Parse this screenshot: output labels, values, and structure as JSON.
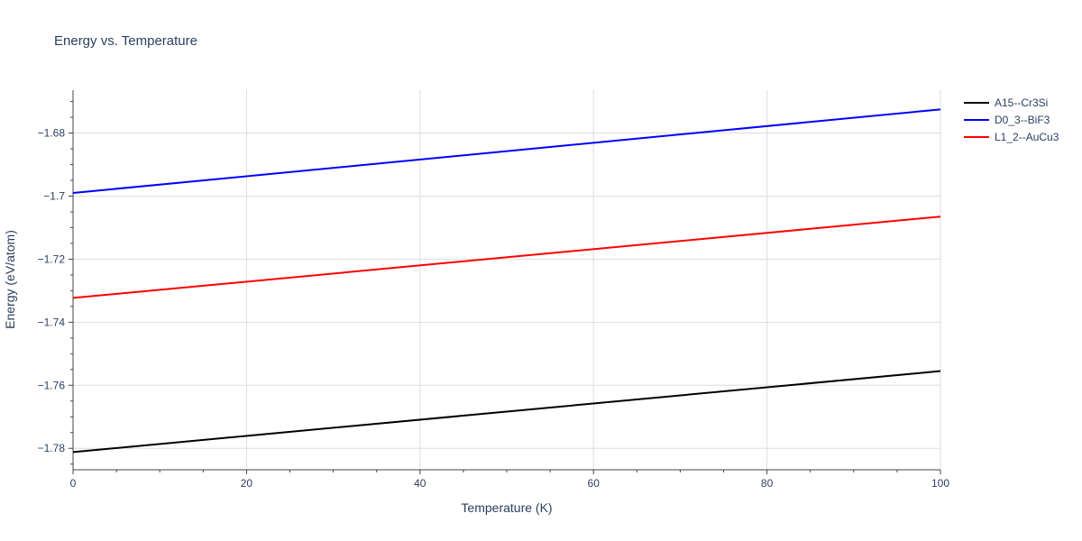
{
  "chart_data": {
    "type": "line",
    "title": "Energy vs. Temperature",
    "xlabel": "Temperature (K)",
    "ylabel": "Energy (eV/atom)",
    "xlim": [
      0,
      100
    ],
    "ylim": [
      -1.7868,
      -1.6664
    ],
    "xticks": [
      0,
      20,
      40,
      60,
      80,
      100
    ],
    "yticks": [
      -1.78,
      -1.76,
      -1.74,
      -1.72,
      -1.7,
      -1.68
    ],
    "ytick_labels": [
      "−1.78",
      "−1.76",
      "−1.74",
      "−1.72",
      "−1.7",
      "−1.68"
    ],
    "grid": true,
    "legend_position": "top-right",
    "series": [
      {
        "name": "A15--Cr3Si",
        "color": "#000000",
        "x": [
          0,
          100
        ],
        "y": [
          -1.7812,
          -1.7555
        ]
      },
      {
        "name": "D0_3--BiF3",
        "color": "#0000ff",
        "x": [
          0,
          100
        ],
        "y": [
          -1.699,
          -1.6725
        ]
      },
      {
        "name": "L1_2--AuCu3",
        "color": "#ff0000",
        "x": [
          0,
          100
        ],
        "y": [
          -1.7323,
          -1.7065
        ]
      }
    ]
  }
}
